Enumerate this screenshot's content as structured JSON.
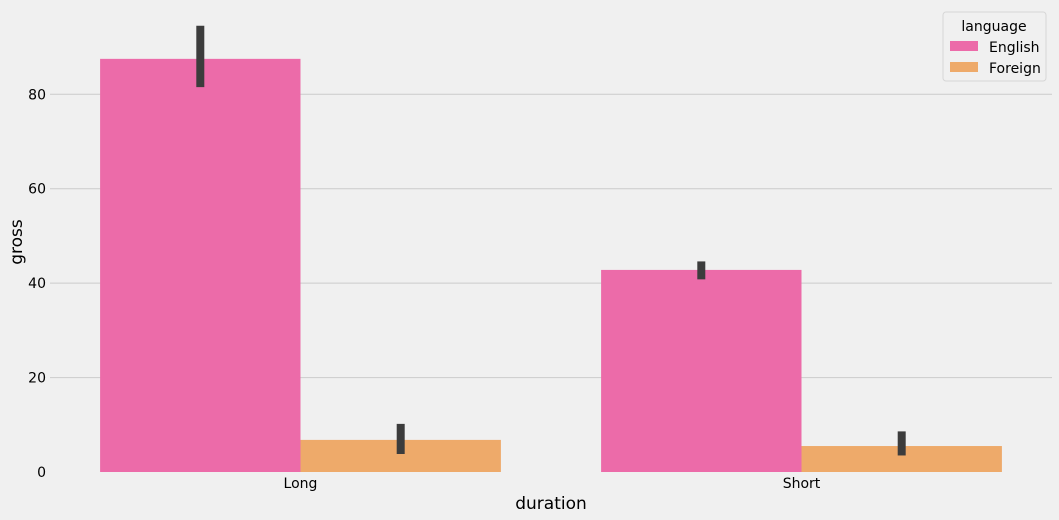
{
  "chart_data": {
    "type": "bar",
    "title": "",
    "xlabel": "duration",
    "ylabel": "gross",
    "categories": [
      "Long",
      "Short"
    ],
    "series": [
      {
        "name": "English",
        "values": [
          87.5,
          42.8
        ],
        "ci": [
          [
            81.5,
            94.5
          ],
          [
            40.8,
            44.6
          ]
        ]
      },
      {
        "name": "Foreign",
        "values": [
          6.8,
          5.5
        ],
        "ci": [
          [
            3.8,
            10.2
          ],
          [
            3.5,
            8.6
          ]
        ]
      }
    ],
    "ylim": [
      0,
      97
    ],
    "yticks": [
      0,
      20,
      40,
      60,
      80
    ],
    "grid": true,
    "legend": {
      "title": "language",
      "position": "top-right"
    },
    "colors": {
      "series": [
        "#ec6ba9",
        "#eeaa6a"
      ],
      "errorbar": "#3c3c3c",
      "grid": "#cbcbcb",
      "background": "#f0f0f0"
    }
  }
}
